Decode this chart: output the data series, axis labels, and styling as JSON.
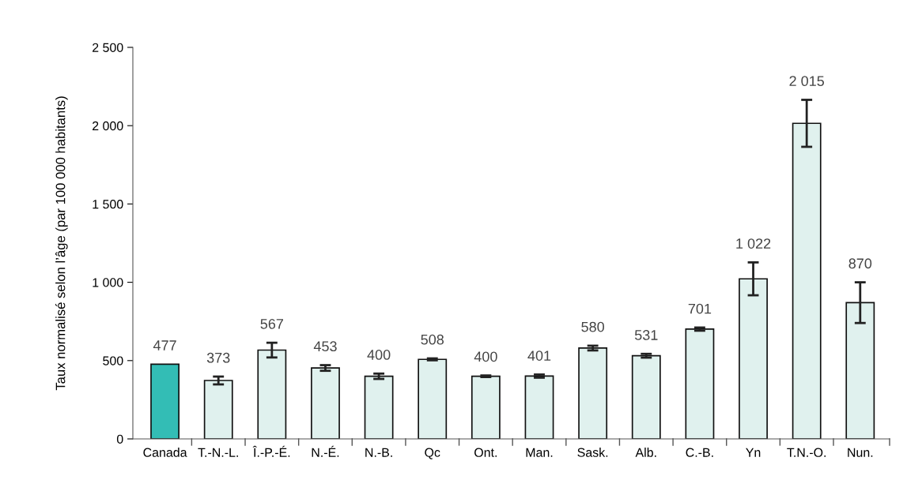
{
  "chart_data": {
    "type": "bar",
    "ylabel": "Taux normalisé selon l’âge (par 100 000 habitants)",
    "categories": [
      "Canada",
      "T.-N.-L.",
      "Î.-P.-É.",
      "N.-É.",
      "N.-B.",
      "Qc",
      "Ont.",
      "Man.",
      "Sask.",
      "Alb.",
      "C.-B.",
      "Yn",
      "T.N.-O.",
      "Nun."
    ],
    "values": [
      477,
      373,
      567,
      453,
      400,
      508,
      400,
      401,
      580,
      531,
      701,
      1022,
      2015,
      870
    ],
    "errors": [
      null,
      25,
      47,
      18,
      17,
      6,
      5,
      10,
      15,
      12,
      10,
      105,
      150,
      130
    ],
    "colors": [
      "#33bdb5",
      "#e0f1ee",
      "#e0f1ee",
      "#e0f1ee",
      "#e0f1ee",
      "#e0f1ee",
      "#e0f1ee",
      "#e0f1ee",
      "#e0f1ee",
      "#e0f1ee",
      "#e0f1ee",
      "#e0f1ee",
      "#e0f1ee",
      "#e0f1ee"
    ],
    "value_labels": [
      "477",
      "373",
      "567",
      "453",
      "400",
      "508",
      "400",
      "401",
      "580",
      "531",
      "701",
      "1 022",
      "2 015",
      "870"
    ],
    "ylim": [
      0,
      2500
    ],
    "yticks": [
      0,
      {
        "value": 500,
        "label": "500"
      },
      {
        "value": 1000,
        "label": "1 000"
      },
      {
        "value": 1500,
        "label": "1 500"
      },
      {
        "value": 2000,
        "label": "2 000"
      },
      {
        "value": 2500,
        "label": "2 500"
      }
    ],
    "grid": false,
    "legend": false
  }
}
